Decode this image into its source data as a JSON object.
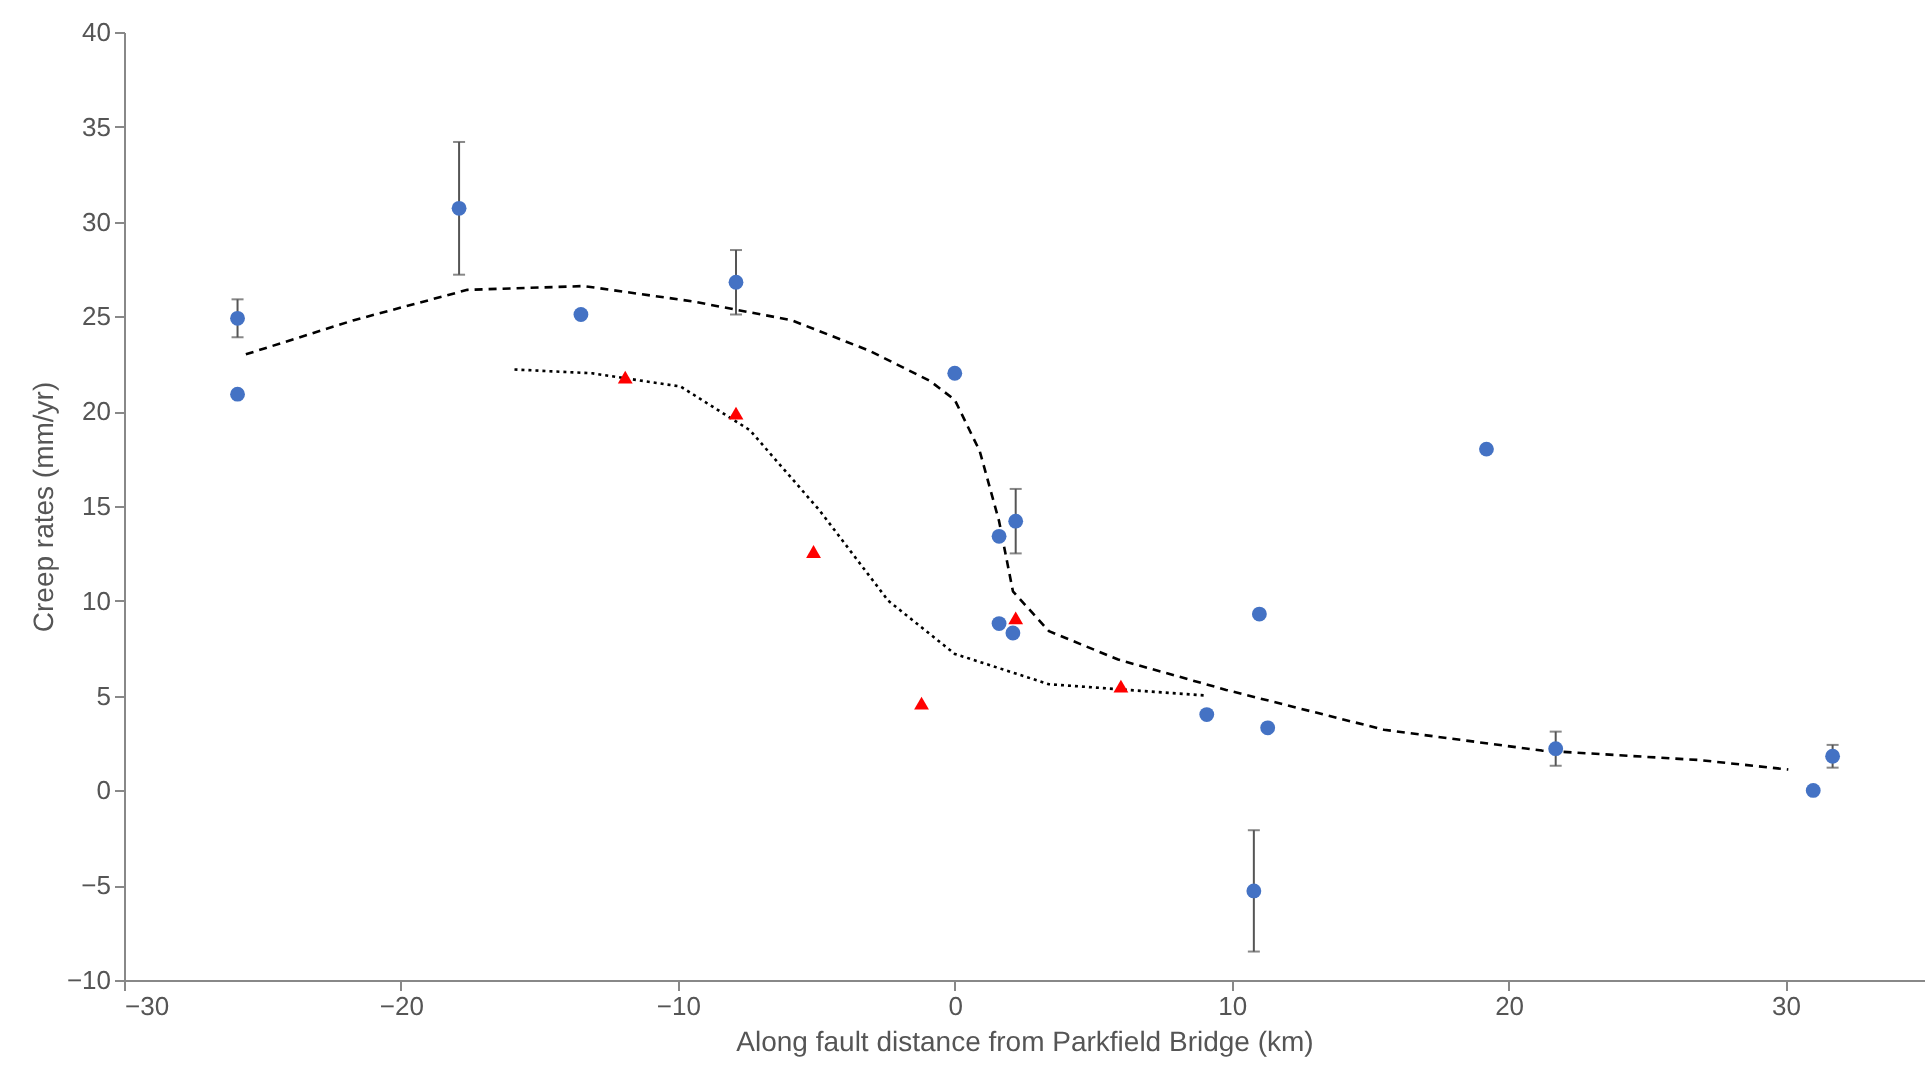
{
  "chart_data": {
    "type": "scatter",
    "xlabel": "Along fault distance from Parkfield Bridge (km)",
    "ylabel": "Creep rates (mm/yr)",
    "xlim": [
      -30,
      35
    ],
    "xticks": [
      -30,
      -20,
      -10,
      0,
      10,
      20,
      30
    ],
    "ylim": [
      -10,
      40
    ],
    "yticks": [
      -10,
      -5,
      0,
      5,
      10,
      15,
      20,
      25,
      30,
      35,
      40
    ],
    "grid": false,
    "series": [
      {
        "type": "line",
        "color": "#000000",
        "line_style": "dashed",
        "marker": "none",
        "x": [
          -25.6,
          -21.7,
          -17.6,
          -13.4,
          -9.5,
          -5.9,
          -3.1,
          -0.9,
          0,
          0.9,
          1.6,
          2.1,
          3.4,
          5.9,
          9.8,
          15.5,
          21.2,
          26.9,
          30.1
        ],
        "values": [
          23.0,
          24.8,
          26.4,
          26.6,
          25.8,
          24.8,
          23.2,
          21.6,
          20.6,
          17.9,
          14.2,
          10.5,
          8.4,
          6.9,
          5.3,
          3.2,
          2.1,
          1.6,
          1.1
        ]
      },
      {
        "type": "line",
        "color": "#000000",
        "line_style": "dotted",
        "marker": "none",
        "x": [
          -15.9,
          -13.1,
          -9.9,
          -7.4,
          -4.9,
          -2.4,
          0,
          3.4,
          9.1
        ],
        "values": [
          22.2,
          22.0,
          21.3,
          19.0,
          14.8,
          10.0,
          7.2,
          5.6,
          5.0
        ]
      },
      {
        "color": "#4472c4",
        "marker": "circle",
        "x": [
          -25.9,
          -25.9,
          -17.9,
          -13.5,
          -7.9,
          0,
          1.6,
          2.2,
          1.6,
          2.1,
          9.1,
          11.0,
          11.3,
          10.8,
          19.2,
          21.7,
          31.0,
          31.7
        ],
        "values": [
          24.9,
          20.9,
          30.7,
          25.1,
          26.8,
          22.0,
          13.4,
          14.2,
          8.8,
          8.3,
          4.0,
          9.3,
          3.3,
          -5.3,
          18.0,
          2.2,
          0,
          1.8
        ],
        "errors": [
          1,
          null,
          3.5,
          null,
          1.7,
          null,
          null,
          1.7,
          null,
          null,
          null,
          null,
          null,
          3.2,
          null,
          0.9,
          null,
          0.6
        ]
      },
      {
        "color": "#ff0000",
        "marker": "triangle",
        "x": [
          -11.9,
          -7.9,
          -5.1,
          -1.2,
          2.2,
          6.0
        ],
        "values": [
          21.8,
          19.9,
          12.6,
          4.6,
          9.1,
          5.5
        ]
      }
    ]
  }
}
